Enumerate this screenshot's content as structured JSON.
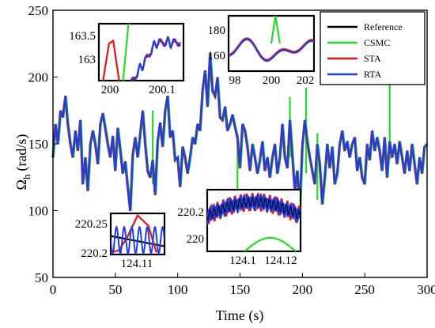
{
  "chart_data": {
    "type": "line",
    "title": "",
    "xlabel": "Time (s)",
    "ylabel_main": "Ω",
    "ylabel_sub": "h",
    "ylabel_unit": "(rad/s)",
    "xlim": [
      0,
      300
    ],
    "ylim": [
      50,
      250
    ],
    "xticks": [
      "0",
      "50",
      "100",
      "150",
      "200",
      "250",
      "300"
    ],
    "yticks": [
      "50",
      "100",
      "150",
      "200",
      "250"
    ],
    "grid": false,
    "legend_position": "top-right",
    "legend": [
      {
        "name": "Reference",
        "color": "#000000"
      },
      {
        "name": "CSMC",
        "color": "#22dd22"
      },
      {
        "name": "STA",
        "color": "#ee1111"
      },
      {
        "name": "RTA",
        "color": "#1f3fe0"
      }
    ],
    "main_series_points": [
      [
        0,
        140
      ],
      [
        2,
        165
      ],
      [
        4,
        150
      ],
      [
        6,
        175
      ],
      [
        8,
        170
      ],
      [
        10,
        186
      ],
      [
        12,
        165
      ],
      [
        14,
        150
      ],
      [
        16,
        140
      ],
      [
        18,
        160
      ],
      [
        20,
        145
      ],
      [
        22,
        168
      ],
      [
        24,
        120
      ],
      [
        26,
        140
      ],
      [
        28,
        115
      ],
      [
        30,
        150
      ],
      [
        32,
        160
      ],
      [
        34,
        150
      ],
      [
        36,
        135
      ],
      [
        38,
        165
      ],
      [
        40,
        173
      ],
      [
        42,
        162
      ],
      [
        44,
        150
      ],
      [
        46,
        140
      ],
      [
        48,
        156
      ],
      [
        50,
        130
      ],
      [
        52,
        162
      ],
      [
        54,
        146
      ],
      [
        56,
        128
      ],
      [
        58,
        137
      ],
      [
        60,
        118
      ],
      [
        62,
        100
      ],
      [
        64,
        142
      ],
      [
        66,
        155
      ],
      [
        68,
        140
      ],
      [
        70,
        158
      ],
      [
        72,
        175
      ],
      [
        74,
        150
      ],
      [
        76,
        130
      ],
      [
        78,
        125
      ],
      [
        80,
        138
      ],
      [
        82,
        112
      ],
      [
        84,
        152
      ],
      [
        86,
        166
      ],
      [
        88,
        148
      ],
      [
        90,
        175
      ],
      [
        92,
        186
      ],
      [
        94,
        155
      ],
      [
        96,
        160
      ],
      [
        98,
        138
      ],
      [
        100,
        140
      ],
      [
        102,
        118
      ],
      [
        104,
        148
      ],
      [
        106,
        140
      ],
      [
        108,
        128
      ],
      [
        110,
        140
      ],
      [
        112,
        155
      ],
      [
        114,
        150
      ],
      [
        116,
        165
      ],
      [
        118,
        160
      ],
      [
        120,
        190
      ],
      [
        122,
        205
      ],
      [
        124,
        178
      ],
      [
        126,
        218
      ],
      [
        128,
        190
      ],
      [
        130,
        186
      ],
      [
        132,
        200
      ],
      [
        134,
        170
      ],
      [
        136,
        168
      ],
      [
        138,
        178
      ],
      [
        140,
        160
      ],
      [
        142,
        165
      ],
      [
        144,
        172
      ],
      [
        146,
        163
      ],
      [
        148,
        155
      ],
      [
        150,
        132
      ],
      [
        152,
        165
      ],
      [
        154,
        160
      ],
      [
        156,
        148
      ],
      [
        158,
        130
      ],
      [
        160,
        150
      ],
      [
        162,
        140
      ],
      [
        164,
        128
      ],
      [
        166,
        138
      ],
      [
        168,
        152
      ],
      [
        170,
        130
      ],
      [
        172,
        140
      ],
      [
        174,
        125
      ],
      [
        176,
        140
      ],
      [
        178,
        150
      ],
      [
        180,
        128
      ],
      [
        182,
        140
      ],
      [
        184,
        165
      ],
      [
        186,
        140
      ],
      [
        188,
        132
      ],
      [
        190,
        168
      ],
      [
        192,
        142
      ],
      [
        194,
        115
      ],
      [
        196,
        130
      ],
      [
        198,
        102
      ],
      [
        200,
        148
      ],
      [
        202,
        168
      ],
      [
        204,
        152
      ],
      [
        206,
        140
      ],
      [
        208,
        130
      ],
      [
        210,
        120
      ],
      [
        212,
        150
      ],
      [
        214,
        135
      ],
      [
        216,
        105
      ],
      [
        218,
        125
      ],
      [
        220,
        150
      ],
      [
        222,
        132
      ],
      [
        224,
        148
      ],
      [
        226,
        120
      ],
      [
        228,
        128
      ],
      [
        230,
        150
      ],
      [
        232,
        160
      ],
      [
        234,
        145
      ],
      [
        236,
        152
      ],
      [
        238,
        140
      ],
      [
        240,
        150
      ],
      [
        242,
        155
      ],
      [
        244,
        130
      ],
      [
        246,
        140
      ],
      [
        248,
        125
      ],
      [
        250,
        120
      ],
      [
        252,
        150
      ],
      [
        254,
        138
      ],
      [
        256,
        160
      ],
      [
        258,
        145
      ],
      [
        260,
        155
      ],
      [
        262,
        145
      ],
      [
        264,
        130
      ],
      [
        266,
        155
      ],
      [
        268,
        125
      ],
      [
        270,
        152
      ],
      [
        272,
        140
      ],
      [
        274,
        150
      ],
      [
        276,
        135
      ],
      [
        278,
        152
      ],
      [
        280,
        140
      ],
      [
        282,
        128
      ],
      [
        284,
        145
      ],
      [
        286,
        130
      ],
      [
        288,
        150
      ],
      [
        290,
        135
      ],
      [
        292,
        120
      ],
      [
        294,
        140
      ],
      [
        296,
        128
      ],
      [
        298,
        148
      ],
      [
        300,
        150
      ]
    ],
    "csmc_spikes": [
      [
        80,
        120,
        175
      ],
      [
        148,
        110,
        158
      ],
      [
        190,
        140,
        185
      ],
      [
        203,
        128,
        192
      ],
      [
        270,
        138,
        195
      ],
      [
        212,
        108,
        158
      ]
    ],
    "insets": [
      {
        "id": "inset-top-left",
        "xticks": [
          "200",
          "200.1"
        ],
        "yticks": [
          "163",
          "163.5"
        ],
        "xlim": [
          199.98,
          200.14
        ],
        "ylim": [
          162.6,
          163.7
        ]
      },
      {
        "id": "inset-top-middle",
        "xticks": [
          "98",
          "200",
          "202"
        ],
        "yticks": [
          "160",
          "180"
        ],
        "xlim": [
          198,
          202
        ],
        "ylim": [
          148,
          190
        ]
      },
      {
        "id": "inset-bottom-left",
        "xticks": [
          "124.11"
        ],
        "yticks": [
          "220.2",
          "220.25"
        ],
        "xlim": [
          124.09,
          124.13
        ],
        "ylim": [
          220.18,
          220.28
        ]
      },
      {
        "id": "inset-bottom-middle",
        "xticks": [
          "124.1",
          "124.12"
        ],
        "yticks": [
          "220",
          "220.2"
        ],
        "xlim": [
          124.09,
          124.13
        ],
        "ylim": [
          219.9,
          220.3
        ]
      }
    ]
  }
}
